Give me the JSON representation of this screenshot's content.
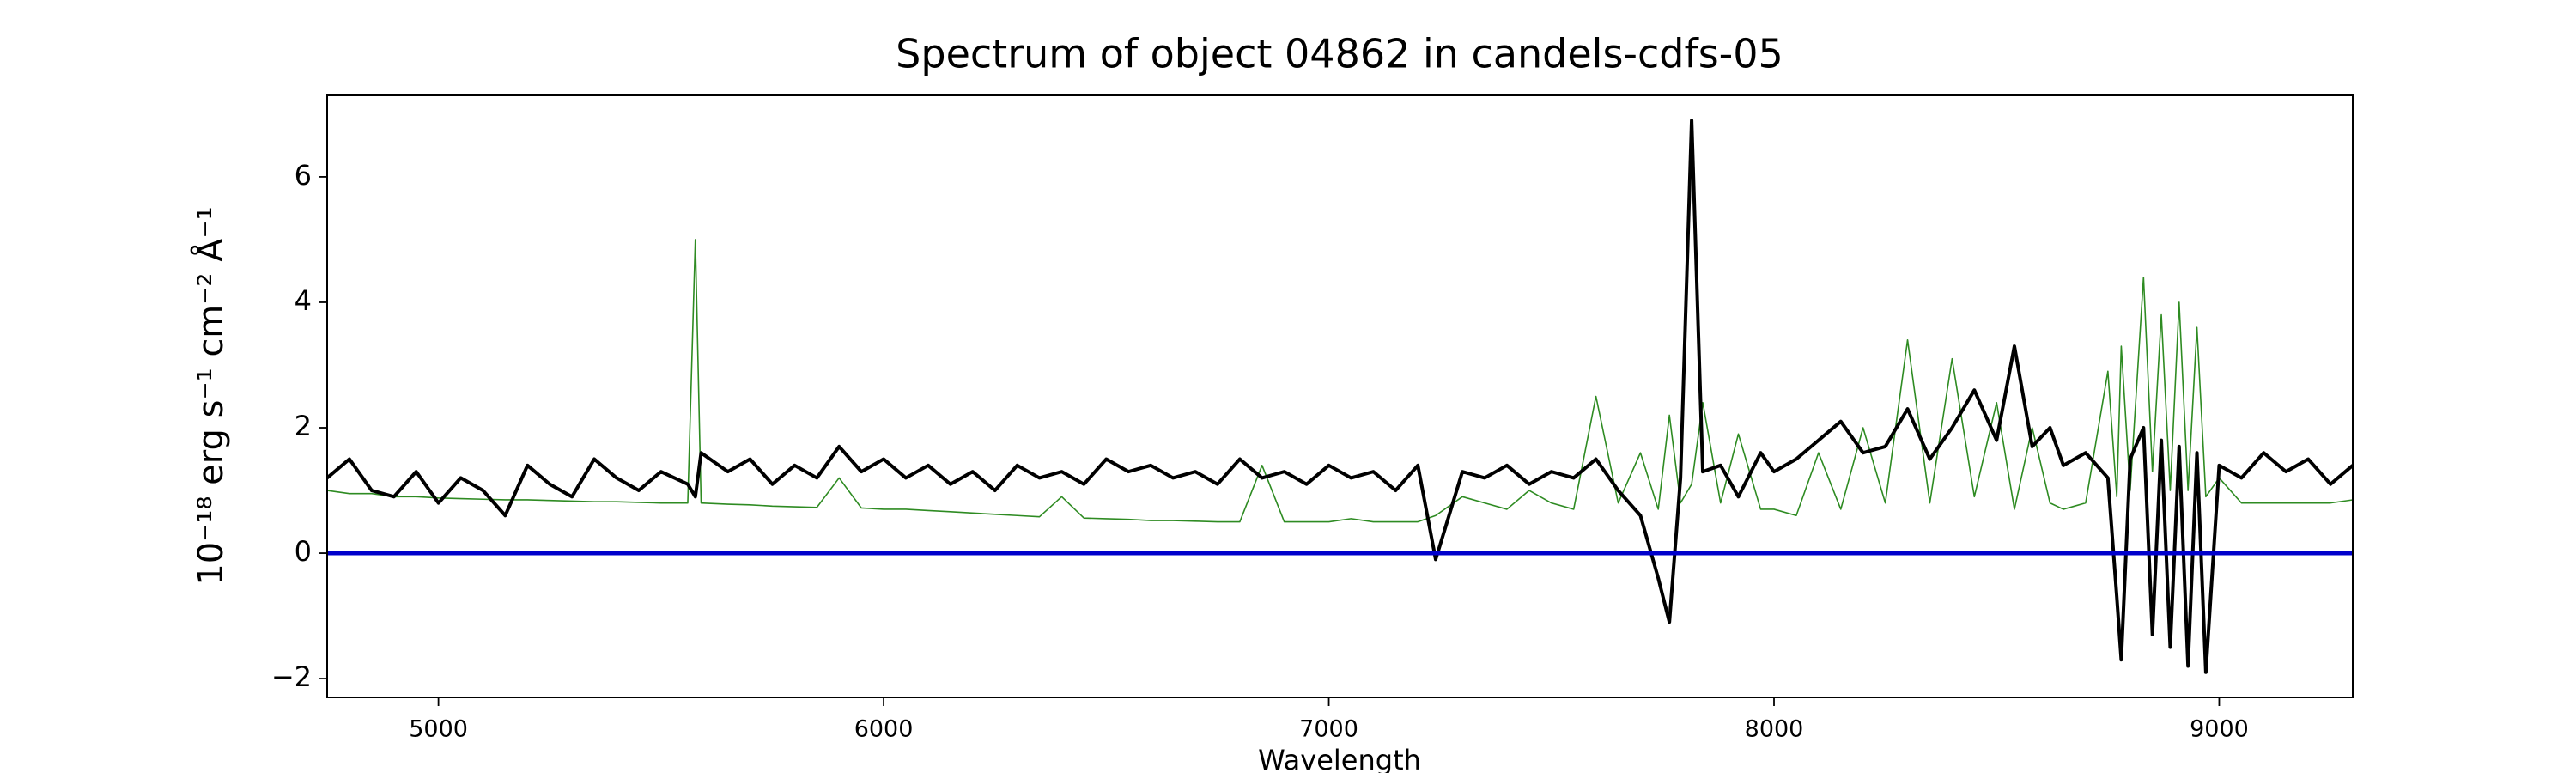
{
  "chart_data": {
    "type": "line",
    "title": "Spectrum of object 04862 in candels-cdfs-05",
    "x_label": "Wavelength",
    "y_label": "10⁻¹⁸ erg s⁻¹ cm⁻² Å⁻¹",
    "xlim": [
      4750,
      9300
    ],
    "ylim": [
      -2.3,
      7.3
    ],
    "xticks": [
      5000,
      6000,
      7000,
      8000,
      9000
    ],
    "yticks": [
      {
        "value": -2,
        "label": "−2"
      },
      0,
      2,
      4,
      6
    ],
    "grid": false,
    "hline": {
      "value": 0,
      "color": "#0000cc"
    },
    "x": [
      4750,
      4800,
      4850,
      4900,
      4950,
      5000,
      5050,
      5100,
      5150,
      5200,
      5250,
      5300,
      5350,
      5400,
      5450,
      5500,
      5560,
      5577,
      5590,
      5650,
      5700,
      5750,
      5800,
      5850,
      5900,
      5950,
      6000,
      6050,
      6100,
      6150,
      6200,
      6250,
      6300,
      6350,
      6400,
      6450,
      6500,
      6550,
      6600,
      6650,
      6700,
      6750,
      6800,
      6850,
      6900,
      6950,
      7000,
      7050,
      7100,
      7150,
      7200,
      7240,
      7300,
      7350,
      7400,
      7450,
      7500,
      7550,
      7600,
      7650,
      7700,
      7740,
      7765,
      7790,
      7815,
      7840,
      7880,
      7920,
      7970,
      8000,
      8050,
      8100,
      8150,
      8200,
      8250,
      8300,
      8350,
      8400,
      8450,
      8500,
      8540,
      8580,
      8620,
      8650,
      8700,
      8750,
      8770,
      8780,
      8800,
      8830,
      8850,
      8870,
      8890,
      8910,
      8930,
      8950,
      8970,
      9000,
      9050,
      9100,
      9150,
      9200,
      9250,
      9300
    ],
    "series": [
      {
        "color": "#2e8b22",
        "width": 1.6,
        "values": [
          1.0,
          0.95,
          0.95,
          0.9,
          0.9,
          0.88,
          0.87,
          0.86,
          0.85,
          0.85,
          0.84,
          0.83,
          0.82,
          0.82,
          0.81,
          0.8,
          0.8,
          5.0,
          0.8,
          0.78,
          0.77,
          0.75,
          0.74,
          0.73,
          1.2,
          0.72,
          0.7,
          0.7,
          0.68,
          0.66,
          0.64,
          0.62,
          0.6,
          0.58,
          0.9,
          0.56,
          0.55,
          0.54,
          0.52,
          0.52,
          0.51,
          0.5,
          0.5,
          1.4,
          0.5,
          0.5,
          0.5,
          0.55,
          0.5,
          0.5,
          0.5,
          0.6,
          0.9,
          0.8,
          0.7,
          1.0,
          0.8,
          0.7,
          2.5,
          0.8,
          1.6,
          0.7,
          2.2,
          0.8,
          1.1,
          2.4,
          0.8,
          1.9,
          0.7,
          0.7,
          0.6,
          1.6,
          0.7,
          2.0,
          0.8,
          3.4,
          0.8,
          3.1,
          0.9,
          2.4,
          0.7,
          2.0,
          0.8,
          0.7,
          0.8,
          2.9,
          0.9,
          3.3,
          1.0,
          4.4,
          1.3,
          3.8,
          1.0,
          4.0,
          1.0,
          3.6,
          0.9,
          1.2,
          0.8,
          0.8,
          0.8,
          0.8,
          0.8,
          0.85
        ]
      },
      {
        "color": "#000000",
        "width": 4,
        "values": [
          1.2,
          1.5,
          1.0,
          0.9,
          1.3,
          0.8,
          1.2,
          1.0,
          0.6,
          1.4,
          1.1,
          0.9,
          1.5,
          1.2,
          1.0,
          1.3,
          1.1,
          0.9,
          1.6,
          1.3,
          1.5,
          1.1,
          1.4,
          1.2,
          1.7,
          1.3,
          1.5,
          1.2,
          1.4,
          1.1,
          1.3,
          1.0,
          1.4,
          1.2,
          1.3,
          1.1,
          1.5,
          1.3,
          1.4,
          1.2,
          1.3,
          1.1,
          1.5,
          1.2,
          1.3,
          1.1,
          1.4,
          1.2,
          1.3,
          1.0,
          1.4,
          -0.1,
          1.3,
          1.2,
          1.4,
          1.1,
          1.3,
          1.2,
          1.5,
          1.0,
          0.6,
          -0.4,
          -1.1,
          1.2,
          6.9,
          1.3,
          1.4,
          0.9,
          1.6,
          1.3,
          1.5,
          1.8,
          2.1,
          1.6,
          1.7,
          2.3,
          1.5,
          2.0,
          2.6,
          1.8,
          3.3,
          1.7,
          2.0,
          1.4,
          1.6,
          1.2,
          -0.7,
          -1.7,
          1.5,
          2.0,
          -1.3,
          1.8,
          -1.5,
          1.7,
          -1.8,
          1.6,
          -1.9,
          1.4,
          1.2,
          1.6,
          1.3,
          1.5,
          1.1,
          1.4
        ]
      }
    ]
  }
}
